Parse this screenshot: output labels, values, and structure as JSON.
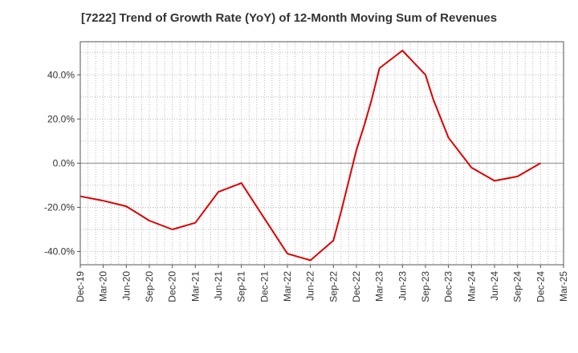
{
  "colors": {
    "series_line": "#dd0000",
    "grid": "#aaaaaa",
    "zero_line": "#888888",
    "frame": "#555555",
    "plot_bg": "#ffffff"
  },
  "chart_data": {
    "type": "line",
    "title": "[7222]  Trend of Growth Rate (YoY) of 12-Month Moving Sum of Revenues",
    "xlabel": "",
    "ylabel": "",
    "x_tick_labels": [
      "Dec-19",
      "Mar-20",
      "Jun-20",
      "Sep-20",
      "Dec-20",
      "Mar-21",
      "Jun-21",
      "Sep-21",
      "Dec-21",
      "Mar-22",
      "Jun-22",
      "Sep-22",
      "Dec-22",
      "Mar-23",
      "Jun-23",
      "Sep-23",
      "Dec-23",
      "Mar-24",
      "Jun-24",
      "Sep-24",
      "Dec-24",
      "Mar-25"
    ],
    "y_tick_labels": [
      "40.0%",
      "20.0%",
      "0.0%",
      "-20.0%",
      "-40.0%"
    ],
    "y_ticks": [
      40,
      20,
      0,
      -20,
      -40
    ],
    "ylim": [
      -46,
      55
    ],
    "xlim": [
      "2019-12",
      "2025-03"
    ],
    "grid": true,
    "series": [
      {
        "x": [
          "2019-12",
          "2020-03",
          "2020-06",
          "2020-09",
          "2020-12",
          "2021-03",
          "2021-06",
          "2021-09",
          "2021-12",
          "2022-03",
          "2022-06",
          "2022-09",
          "2022-10",
          "2022-12",
          "2023-01",
          "2023-02",
          "2023-03",
          "2023-06",
          "2023-09",
          "2023-10",
          "2023-12",
          "2024-03",
          "2024-06",
          "2024-09",
          "2024-12"
        ],
        "values": [
          -15.0,
          -17.0,
          -19.5,
          -26.0,
          -30.0,
          -27.0,
          -13.0,
          -9.0,
          -25.0,
          -41.0,
          -44.0,
          -35.0,
          -22.0,
          6.0,
          17.0,
          29.0,
          43.0,
          51.0,
          40.0,
          29.0,
          11.5,
          -2.0,
          -8.0,
          -6.0,
          0.0
        ]
      }
    ]
  }
}
